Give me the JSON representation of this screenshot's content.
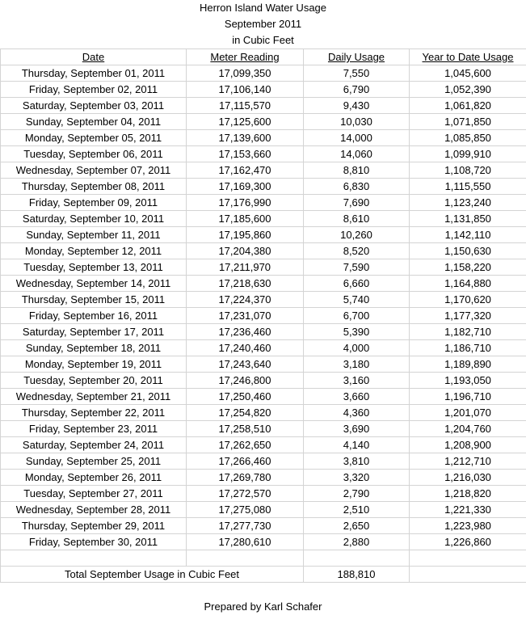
{
  "title": {
    "line1": "Herron Island Water Usage",
    "line2": "September 2011",
    "line3": "in Cubic Feet"
  },
  "headers": [
    "Date",
    "Meter Reading",
    "Daily Usage",
    "Year to Date Usage"
  ],
  "rows": [
    [
      "Thursday, September 01, 2011",
      "17,099,350",
      "7,550",
      "1,045,600"
    ],
    [
      "Friday, September 02, 2011",
      "17,106,140",
      "6,790",
      "1,052,390"
    ],
    [
      "Saturday, September 03, 2011",
      "17,115,570",
      "9,430",
      "1,061,820"
    ],
    [
      "Sunday, September 04, 2011",
      "17,125,600",
      "10,030",
      "1,071,850"
    ],
    [
      "Monday, September 05, 2011",
      "17,139,600",
      "14,000",
      "1,085,850"
    ],
    [
      "Tuesday, September 06, 2011",
      "17,153,660",
      "14,060",
      "1,099,910"
    ],
    [
      "Wednesday, September 07, 2011",
      "17,162,470",
      "8,810",
      "1,108,720"
    ],
    [
      "Thursday, September 08, 2011",
      "17,169,300",
      "6,830",
      "1,115,550"
    ],
    [
      "Friday, September 09, 2011",
      "17,176,990",
      "7,690",
      "1,123,240"
    ],
    [
      "Saturday, September 10, 2011",
      "17,185,600",
      "8,610",
      "1,131,850"
    ],
    [
      "Sunday, September 11, 2011",
      "17,195,860",
      "10,260",
      "1,142,110"
    ],
    [
      "Monday, September 12, 2011",
      "17,204,380",
      "8,520",
      "1,150,630"
    ],
    [
      "Tuesday, September 13, 2011",
      "17,211,970",
      "7,590",
      "1,158,220"
    ],
    [
      "Wednesday, September 14, 2011",
      "17,218,630",
      "6,660",
      "1,164,880"
    ],
    [
      "Thursday, September 15, 2011",
      "17,224,370",
      "5,740",
      "1,170,620"
    ],
    [
      "Friday, September 16, 2011",
      "17,231,070",
      "6,700",
      "1,177,320"
    ],
    [
      "Saturday, September 17, 2011",
      "17,236,460",
      "5,390",
      "1,182,710"
    ],
    [
      "Sunday, September 18, 2011",
      "17,240,460",
      "4,000",
      "1,186,710"
    ],
    [
      "Monday, September 19, 2011",
      "17,243,640",
      "3,180",
      "1,189,890"
    ],
    [
      "Tuesday, September 20, 2011",
      "17,246,800",
      "3,160",
      "1,193,050"
    ],
    [
      "Wednesday, September 21, 2011",
      "17,250,460",
      "3,660",
      "1,196,710"
    ],
    [
      "Thursday, September 22, 2011",
      "17,254,820",
      "4,360",
      "1,201,070"
    ],
    [
      "Friday, September 23, 2011",
      "17,258,510",
      "3,690",
      "1,204,760"
    ],
    [
      "Saturday, September 24, 2011",
      "17,262,650",
      "4,140",
      "1,208,900"
    ],
    [
      "Sunday, September 25, 2011",
      "17,266,460",
      "3,810",
      "1,212,710"
    ],
    [
      "Monday, September 26, 2011",
      "17,269,780",
      "3,320",
      "1,216,030"
    ],
    [
      "Tuesday, September 27, 2011",
      "17,272,570",
      "2,790",
      "1,218,820"
    ],
    [
      "Wednesday, September 28, 2011",
      "17,275,080",
      "2,510",
      "1,221,330"
    ],
    [
      "Thursday, September 29, 2011",
      "17,277,730",
      "2,650",
      "1,223,980"
    ],
    [
      "Friday, September 30, 2011",
      "17,280,610",
      "2,880",
      "1,226,860"
    ]
  ],
  "total": {
    "label": "Total September Usage in Cubic Feet",
    "value": "188,810"
  },
  "footer": {
    "prepared_by": "Prepared by Karl Schafer"
  },
  "colors": {
    "gridline": "#d4d4d4",
    "text": "#000000",
    "background": "#ffffff"
  }
}
